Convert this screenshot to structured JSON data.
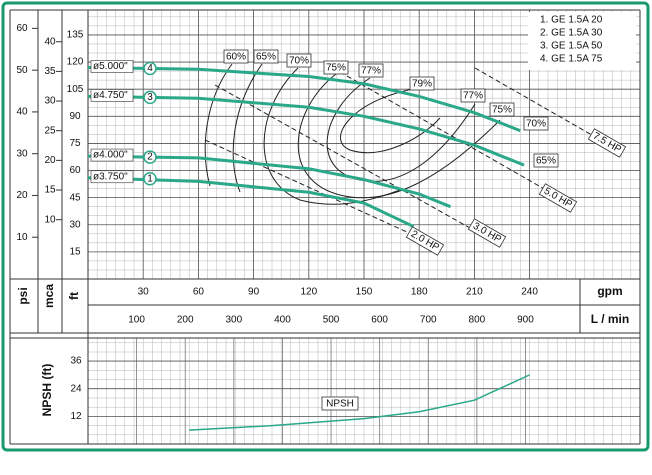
{
  "chart_data": [
    {
      "type": "line",
      "x_label": "gpm",
      "x2_label": "L / min",
      "y_labels": [
        "psi",
        "mca",
        "ft"
      ],
      "xlim": [
        0,
        300
      ],
      "xticks": [
        30,
        60,
        90,
        120,
        150,
        180,
        210,
        240
      ],
      "x2lim": [
        0,
        1135.6
      ],
      "x2ticks": [
        100,
        200,
        300,
        400,
        500,
        600,
        700,
        800,
        900
      ],
      "ylim": [
        0,
        148.8
      ],
      "yticks": [
        15,
        30,
        45,
        60,
        75,
        90,
        105,
        120,
        135
      ],
      "psilim": [
        0,
        64.4
      ],
      "psiticks": [
        10,
        20,
        30,
        40,
        50,
        60
      ],
      "mcalim": [
        0,
        45.35
      ],
      "mcaticks": [
        10,
        15,
        20,
        25,
        30,
        35,
        40
      ],
      "color": "#2aa889",
      "legend": [
        "1. GE 1.5A 20",
        "2. GE 1.5A 30",
        "3. GE 1.5A 50",
        "4. GE 1.5A 75"
      ],
      "series": [
        {
          "name": "ø3.750\"",
          "marker": "1",
          "x": [
            0,
            60,
            120,
            150,
            177
          ],
          "values": [
            56,
            54,
            48,
            42,
            29
          ]
        },
        {
          "name": "ø4.000\"",
          "marker": "2",
          "x": [
            0,
            60,
            120,
            150,
            180,
            197
          ],
          "values": [
            68,
            67,
            61,
            55,
            47,
            40
          ]
        },
        {
          "name": "ø4.750\"",
          "marker": "3",
          "x": [
            0,
            60,
            120,
            150,
            180,
            210,
            237
          ],
          "values": [
            101,
            100,
            95,
            90,
            83,
            74,
            63
          ]
        },
        {
          "name": "ø5.000\"",
          "marker": "4",
          "x": [
            0,
            60,
            120,
            150,
            180,
            210,
            235
          ],
          "values": [
            117,
            116,
            112,
            108,
            101,
            92,
            82
          ]
        }
      ],
      "efficiency_labels": [
        "60%",
        "65%",
        "70%",
        "75%",
        "77%",
        "79%",
        "77%",
        "75%",
        "70%",
        "65%"
      ],
      "hp_labels": [
        "2.0 HP",
        "3.0 HP",
        "5.0 HP",
        "7.5 HP"
      ]
    },
    {
      "type": "line",
      "y_label": "NPSH (ft)",
      "xlim": [
        0,
        300
      ],
      "ylim": [
        0,
        46
      ],
      "yticks": [
        12,
        24,
        36
      ],
      "color": "#2aa889",
      "series": [
        {
          "name": "NPSH",
          "x": [
            55,
            100,
            150,
            180,
            210,
            240
          ],
          "values": [
            6,
            8,
            11,
            14,
            19,
            30
          ]
        }
      ]
    }
  ]
}
